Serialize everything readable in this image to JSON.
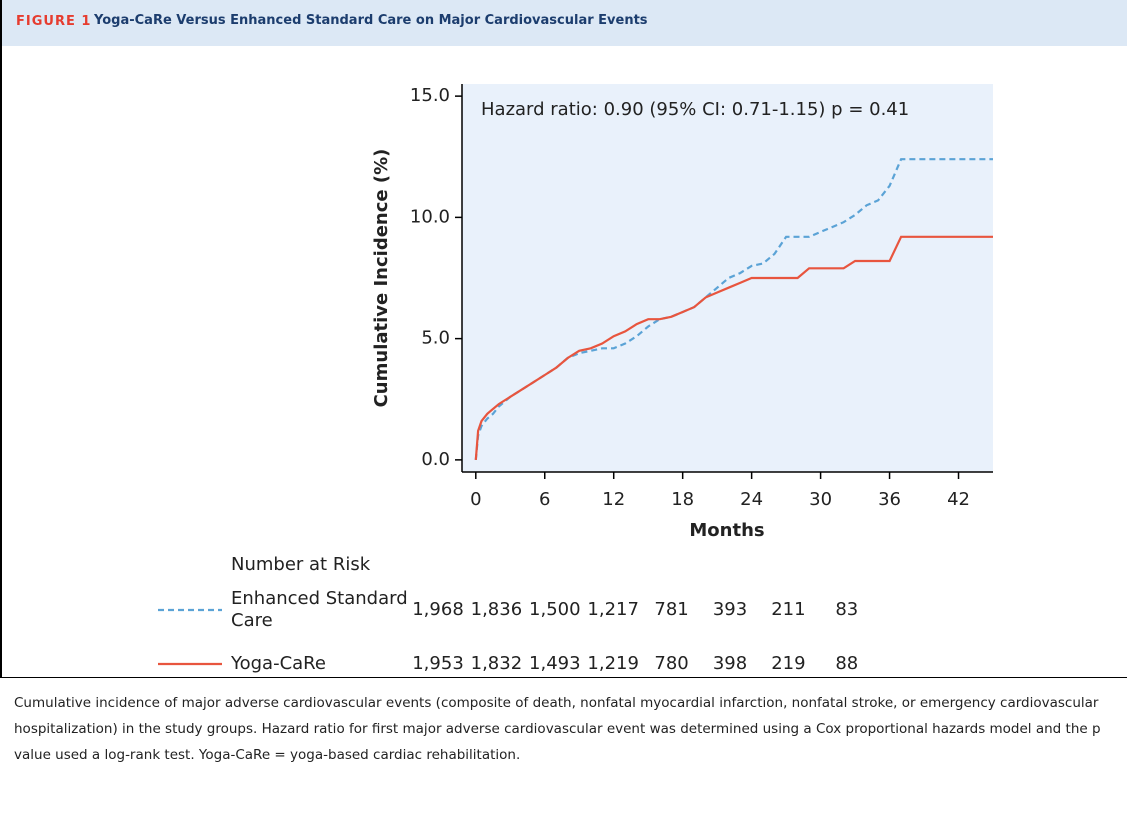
{
  "figure_label": "FIGURE 1",
  "figure_title": "Yoga-CaRe Versus Enhanced Standard Care on Major Cardiovascular Events",
  "chart_data": {
    "type": "line",
    "annotation": "Hazard ratio: 0.90 (95% CI: 0.71-1.15) p = 0.41",
    "x_label": "Months",
    "y_label": "Cumulative Incidence (%)",
    "x": [
      0,
      0.2,
      0.5,
      1,
      1.5,
      2,
      3,
      4,
      5,
      6,
      7,
      8,
      9,
      10,
      11,
      12,
      13,
      14,
      15,
      16,
      17,
      18,
      19,
      20,
      21,
      22,
      23,
      24,
      25,
      26,
      27,
      28,
      29,
      30,
      31,
      32,
      33,
      34,
      35,
      36,
      37,
      38,
      39,
      40,
      41,
      42,
      43,
      44,
      45
    ],
    "series": [
      {
        "name": "Enhanced Standard Care",
        "color": "#5ba3d6",
        "line_style": "dashed",
        "values": [
          0,
          1.0,
          1.4,
          1.7,
          1.9,
          2.2,
          2.6,
          2.9,
          3.2,
          3.5,
          3.8,
          4.2,
          4.4,
          4.5,
          4.6,
          4.6,
          4.8,
          5.1,
          5.5,
          5.8,
          5.9,
          6.1,
          6.3,
          6.7,
          7.1,
          7.5,
          7.7,
          8.0,
          8.1,
          8.5,
          9.2,
          9.2,
          9.2,
          9.4,
          9.6,
          9.8,
          10.1,
          10.5,
          10.7,
          11.3,
          12.4,
          12.4,
          12.4,
          12.4,
          12.4,
          12.4,
          12.4,
          12.4,
          12.4
        ]
      },
      {
        "name": "Yoga-CaRe",
        "color": "#e8553e",
        "line_style": "solid",
        "values": [
          0,
          1.2,
          1.6,
          1.9,
          2.1,
          2.3,
          2.6,
          2.9,
          3.2,
          3.5,
          3.8,
          4.2,
          4.5,
          4.6,
          4.8,
          5.1,
          5.3,
          5.6,
          5.8,
          5.8,
          5.9,
          6.1,
          6.3,
          6.7,
          6.9,
          7.1,
          7.3,
          7.5,
          7.5,
          7.5,
          7.5,
          7.5,
          7.9,
          7.9,
          7.9,
          7.9,
          8.2,
          8.2,
          8.2,
          8.2,
          9.2,
          9.2,
          9.2,
          9.2,
          9.2,
          9.2,
          9.2,
          9.2,
          9.2
        ]
      }
    ],
    "xlim": [
      -1.2,
      45
    ],
    "xticks": [
      0,
      6,
      12,
      18,
      24,
      30,
      36,
      42
    ],
    "ylim": [
      -0.5,
      15.5
    ],
    "yticks": [
      {
        "value": 0,
        "label": "0.0"
      },
      {
        "value": 5,
        "label": "5.0"
      },
      {
        "value": 10,
        "label": "10.0"
      },
      {
        "value": 15,
        "label": "15.0"
      }
    ],
    "background": "#e9f1fb"
  },
  "risk_table": {
    "title": "Number at Risk",
    "rows": [
      {
        "name": "Enhanced Standard Care",
        "counts": [
          "1,968",
          "1,836",
          "1,500",
          "1,217",
          "781",
          "393",
          "211",
          "83"
        ]
      },
      {
        "name": "Yoga-CaRe",
        "counts": [
          "1,953",
          "1,832",
          "1,493",
          "1,219",
          "780",
          "398",
          "219",
          "88"
        ]
      }
    ]
  },
  "caption": "Cumulative incidence of major adverse cardiovascular events (composite of death, nonfatal myocardial infarction, nonfatal stroke, or emergency cardiovascular hospitalization) in the study groups. Hazard ratio for first major adverse cardiovascular event was determined using a Cox proportional hazards model and the p value used a log-rank test. Yoga-CaRe = yoga-based cardiac rehabilitation."
}
